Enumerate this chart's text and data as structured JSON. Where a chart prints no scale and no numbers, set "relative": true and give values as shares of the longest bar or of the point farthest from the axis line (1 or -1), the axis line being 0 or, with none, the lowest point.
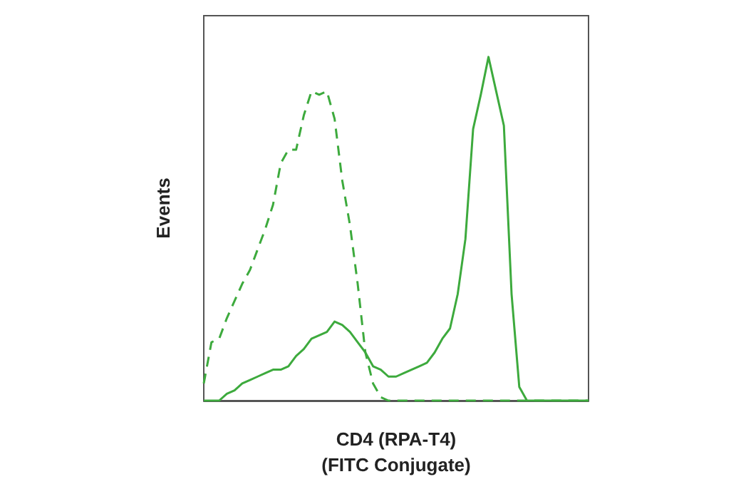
{
  "chart_data": {
    "type": "line",
    "relative": true,
    "xlabel": "CD4 (RPA-T4)\n(FITC Conjugate)",
    "ylabel": "Events",
    "categories": [
      null,
      null,
      null,
      null,
      null,
      null,
      null,
      null,
      null,
      null,
      null,
      null,
      null,
      null,
      null,
      null,
      null,
      null,
      null,
      null,
      null,
      null,
      null,
      null,
      null,
      null,
      null,
      null,
      null,
      null,
      null,
      null,
      null,
      null,
      null,
      null,
      null,
      null,
      null,
      null,
      null,
      null,
      null,
      null,
      null,
      null,
      null,
      null,
      null,
      null,
      null
    ],
    "series": [
      {
        "color": "#3daa3d",
        "line_style": "dashed",
        "values": [
          0.05,
          0.17,
          0.18,
          0.24,
          0.29,
          0.34,
          0.38,
          0.44,
          0.5,
          0.57,
          0.69,
          0.73,
          0.73,
          0.83,
          0.9,
          0.89,
          0.9,
          0.82,
          0.64,
          0.51,
          0.34,
          0.14,
          0.05,
          0.01,
          0,
          0,
          0,
          0,
          0,
          0,
          0,
          0,
          0,
          0,
          0,
          0,
          0,
          0,
          0,
          0,
          0,
          0,
          0,
          0,
          0,
          0,
          0,
          0,
          0,
          0,
          0
        ]
      },
      {
        "color": "#3daa3d",
        "line_style": "solid",
        "values": [
          0,
          0,
          0,
          0.02,
          0.03,
          0.05,
          0.06,
          0.07,
          0.08,
          0.09,
          0.09,
          0.1,
          0.13,
          0.15,
          0.18,
          0.19,
          0.2,
          0.23,
          0.22,
          0.2,
          0.17,
          0.14,
          0.1,
          0.09,
          0.07,
          0.07,
          0.08,
          0.09,
          0.1,
          0.11,
          0.14,
          0.18,
          0.21,
          0.31,
          0.47,
          0.79,
          0.89,
          1,
          0.9,
          0.8,
          0.31,
          0.04,
          0,
          0,
          0,
          0,
          0,
          0,
          0,
          0,
          0
        ]
      }
    ]
  }
}
